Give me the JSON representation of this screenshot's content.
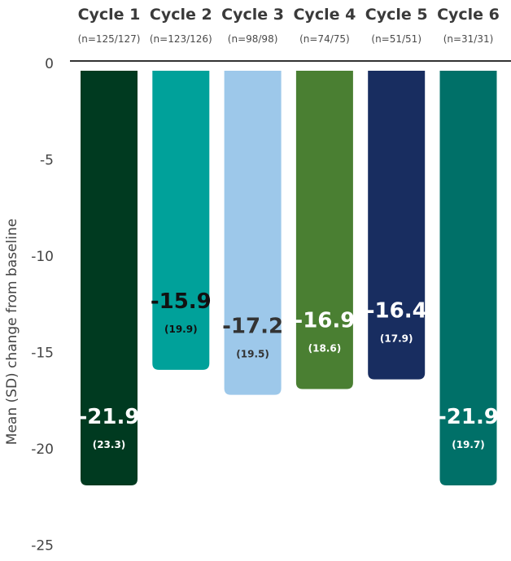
{
  "chart_data": {
    "type": "bar",
    "categories": [
      "Cycle 1",
      "Cycle 2",
      "Cycle 3",
      "Cycle 4",
      "Cycle 5",
      "Cycle 6"
    ],
    "n_labels": [
      "(n=125/127)",
      "(n=123/126)",
      "(n=98/98)",
      "(n=74/75)",
      "(n=51/51)",
      "(n=31/31)"
    ],
    "values": [
      -21.9,
      -15.9,
      -17.2,
      -16.9,
      -16.4,
      -21.9
    ],
    "value_labels": [
      "-21.9",
      "-15.9",
      "-17.2",
      "-16.9",
      "-16.4",
      "-21.9"
    ],
    "sd": [
      23.3,
      19.9,
      19.5,
      18.6,
      17.9,
      19.7
    ],
    "sd_labels": [
      "(23.3)",
      "(19.9)",
      "(19.5)",
      "(18.6)",
      "(17.9)",
      "(19.7)"
    ],
    "colors": [
      "#003a20",
      "#00a19a",
      "#9dc8ea",
      "#4a7f32",
      "#182d60",
      "#007068"
    ],
    "label_colors": [
      "#ffffff",
      "#111111",
      "#333333",
      "#ffffff",
      "#ffffff",
      "#ffffff"
    ],
    "ylabel": "Mean (SD) change from baseline",
    "ylim": [
      -25,
      0
    ],
    "yticks": [
      0,
      -5,
      -10,
      -15,
      -20,
      -25
    ],
    "grid": false
  }
}
